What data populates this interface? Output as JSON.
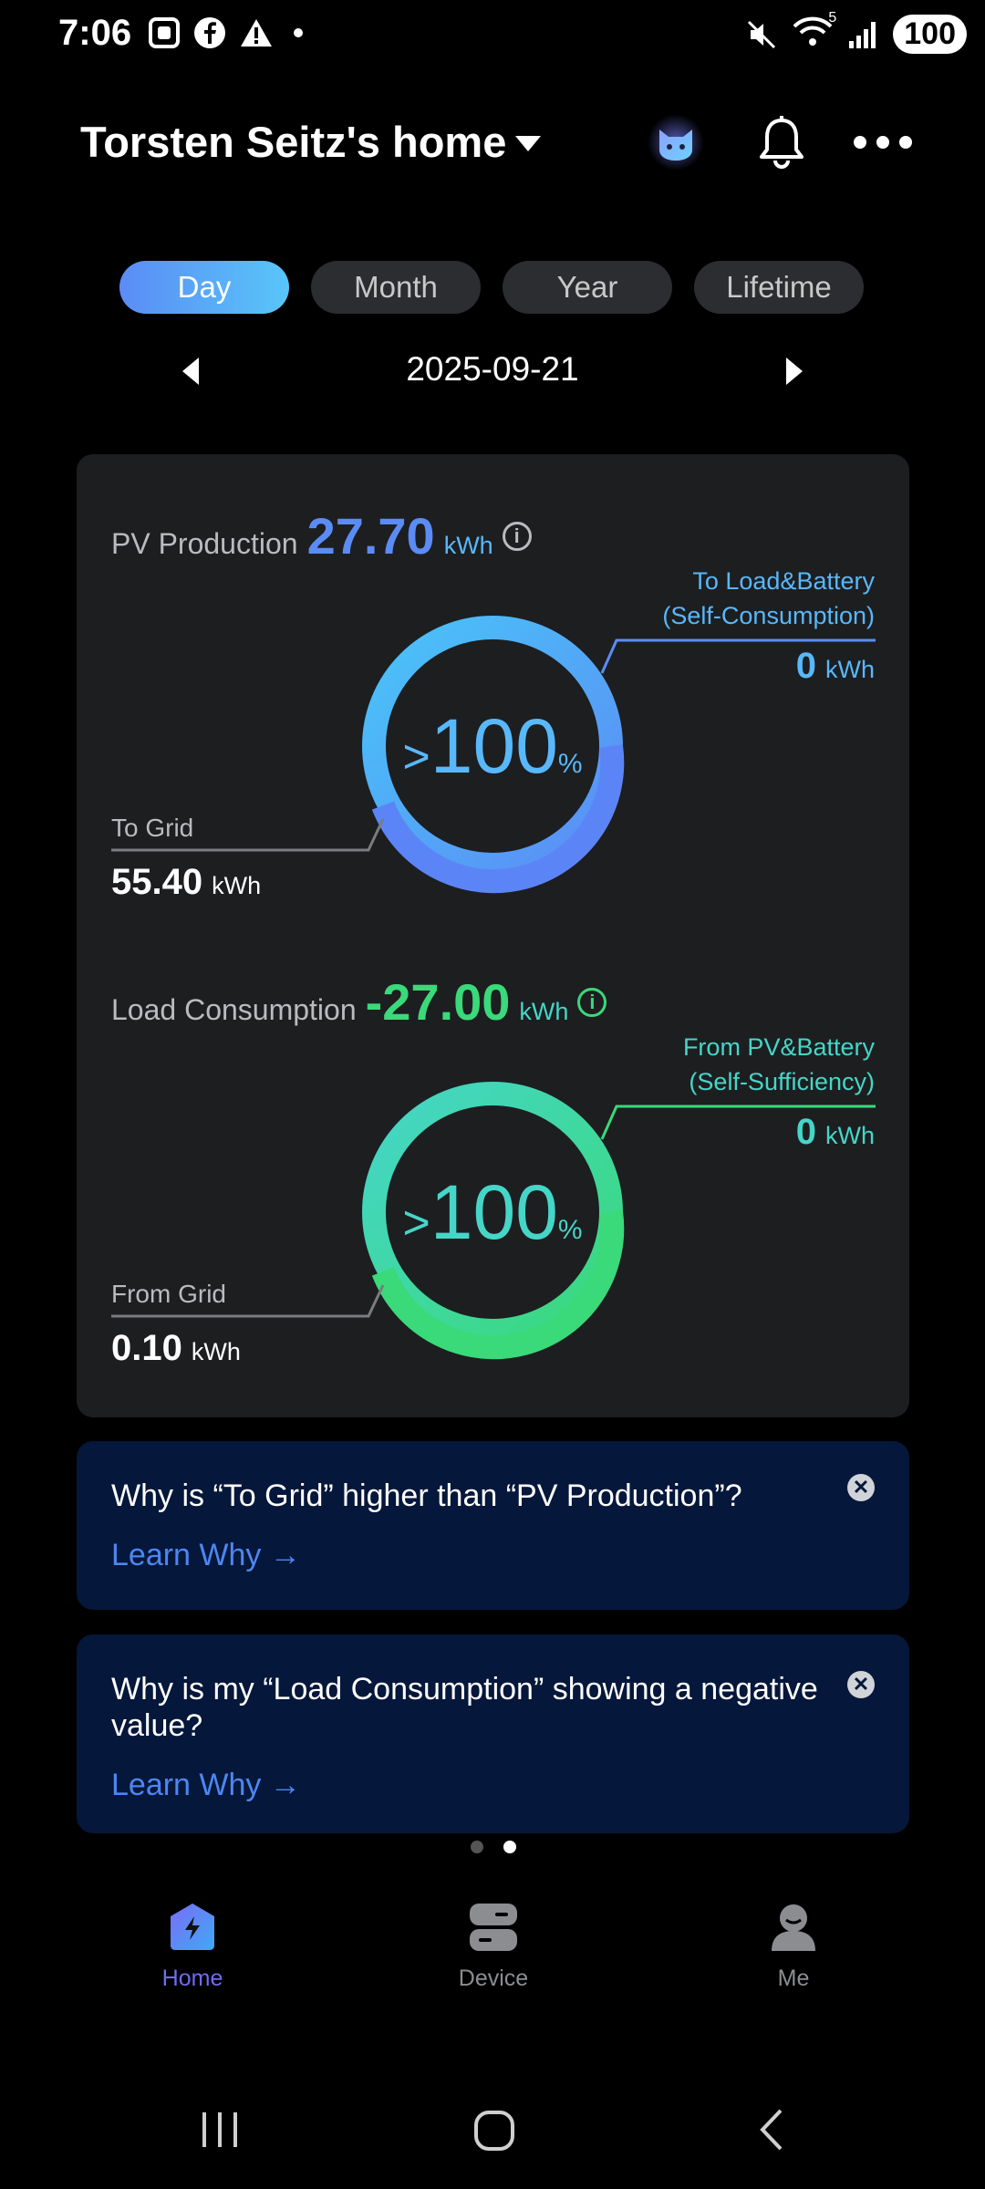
{
  "status_bar": {
    "time": "7:06",
    "battery": "100",
    "wifi_badge": "5"
  },
  "header": {
    "title": "Torsten Seitz's home"
  },
  "tabs": [
    {
      "label": "Day",
      "active": true
    },
    {
      "label": "Month",
      "active": false
    },
    {
      "label": "Year",
      "active": false
    },
    {
      "label": "Lifetime",
      "active": false
    }
  ],
  "date": "2025-09-21",
  "pv": {
    "label": "PV Production",
    "value": "27.70",
    "unit": "kWh",
    "ratio_gt": ">",
    "ratio_value": "100",
    "ratio_unit": "%",
    "self_label_1": "To Load&Battery",
    "self_label_2": "(Self-Consumption)",
    "self_value": "0",
    "self_unit": "kWh",
    "grid_label": "To Grid",
    "grid_value": "55.40",
    "grid_unit": "kWh"
  },
  "load": {
    "label": "Load Consumption",
    "value": "-27.00",
    "unit": "kWh",
    "ratio_gt": ">",
    "ratio_value": "100",
    "ratio_unit": "%",
    "self_label_1": "From PV&Battery",
    "self_label_2": "(Self-Sufficiency)",
    "self_value": "0",
    "self_unit": "kWh",
    "grid_label": "From Grid",
    "grid_value": "0.10",
    "grid_unit": "kWh"
  },
  "banners": [
    {
      "question": "Why is “To Grid” higher than “PV Production”?",
      "link": "Learn Why →"
    },
    {
      "question": "Why is my “Load Consumption” showing a negative value?",
      "link": "Learn Why →"
    }
  ],
  "nav": [
    {
      "label": "Home",
      "icon": "home-bolt-icon",
      "active": true
    },
    {
      "label": "Device",
      "icon": "device-icon",
      "active": false
    },
    {
      "label": "Me",
      "icon": "person-icon",
      "active": false
    }
  ],
  "colors": {
    "pv_blue": "#5b8cf5",
    "pv_light": "#58b8fb",
    "load_green": "#3ad97a",
    "load_teal": "#45d6c8",
    "nav_active": "#6f6cf2",
    "banner_link": "#4d86f2"
  }
}
